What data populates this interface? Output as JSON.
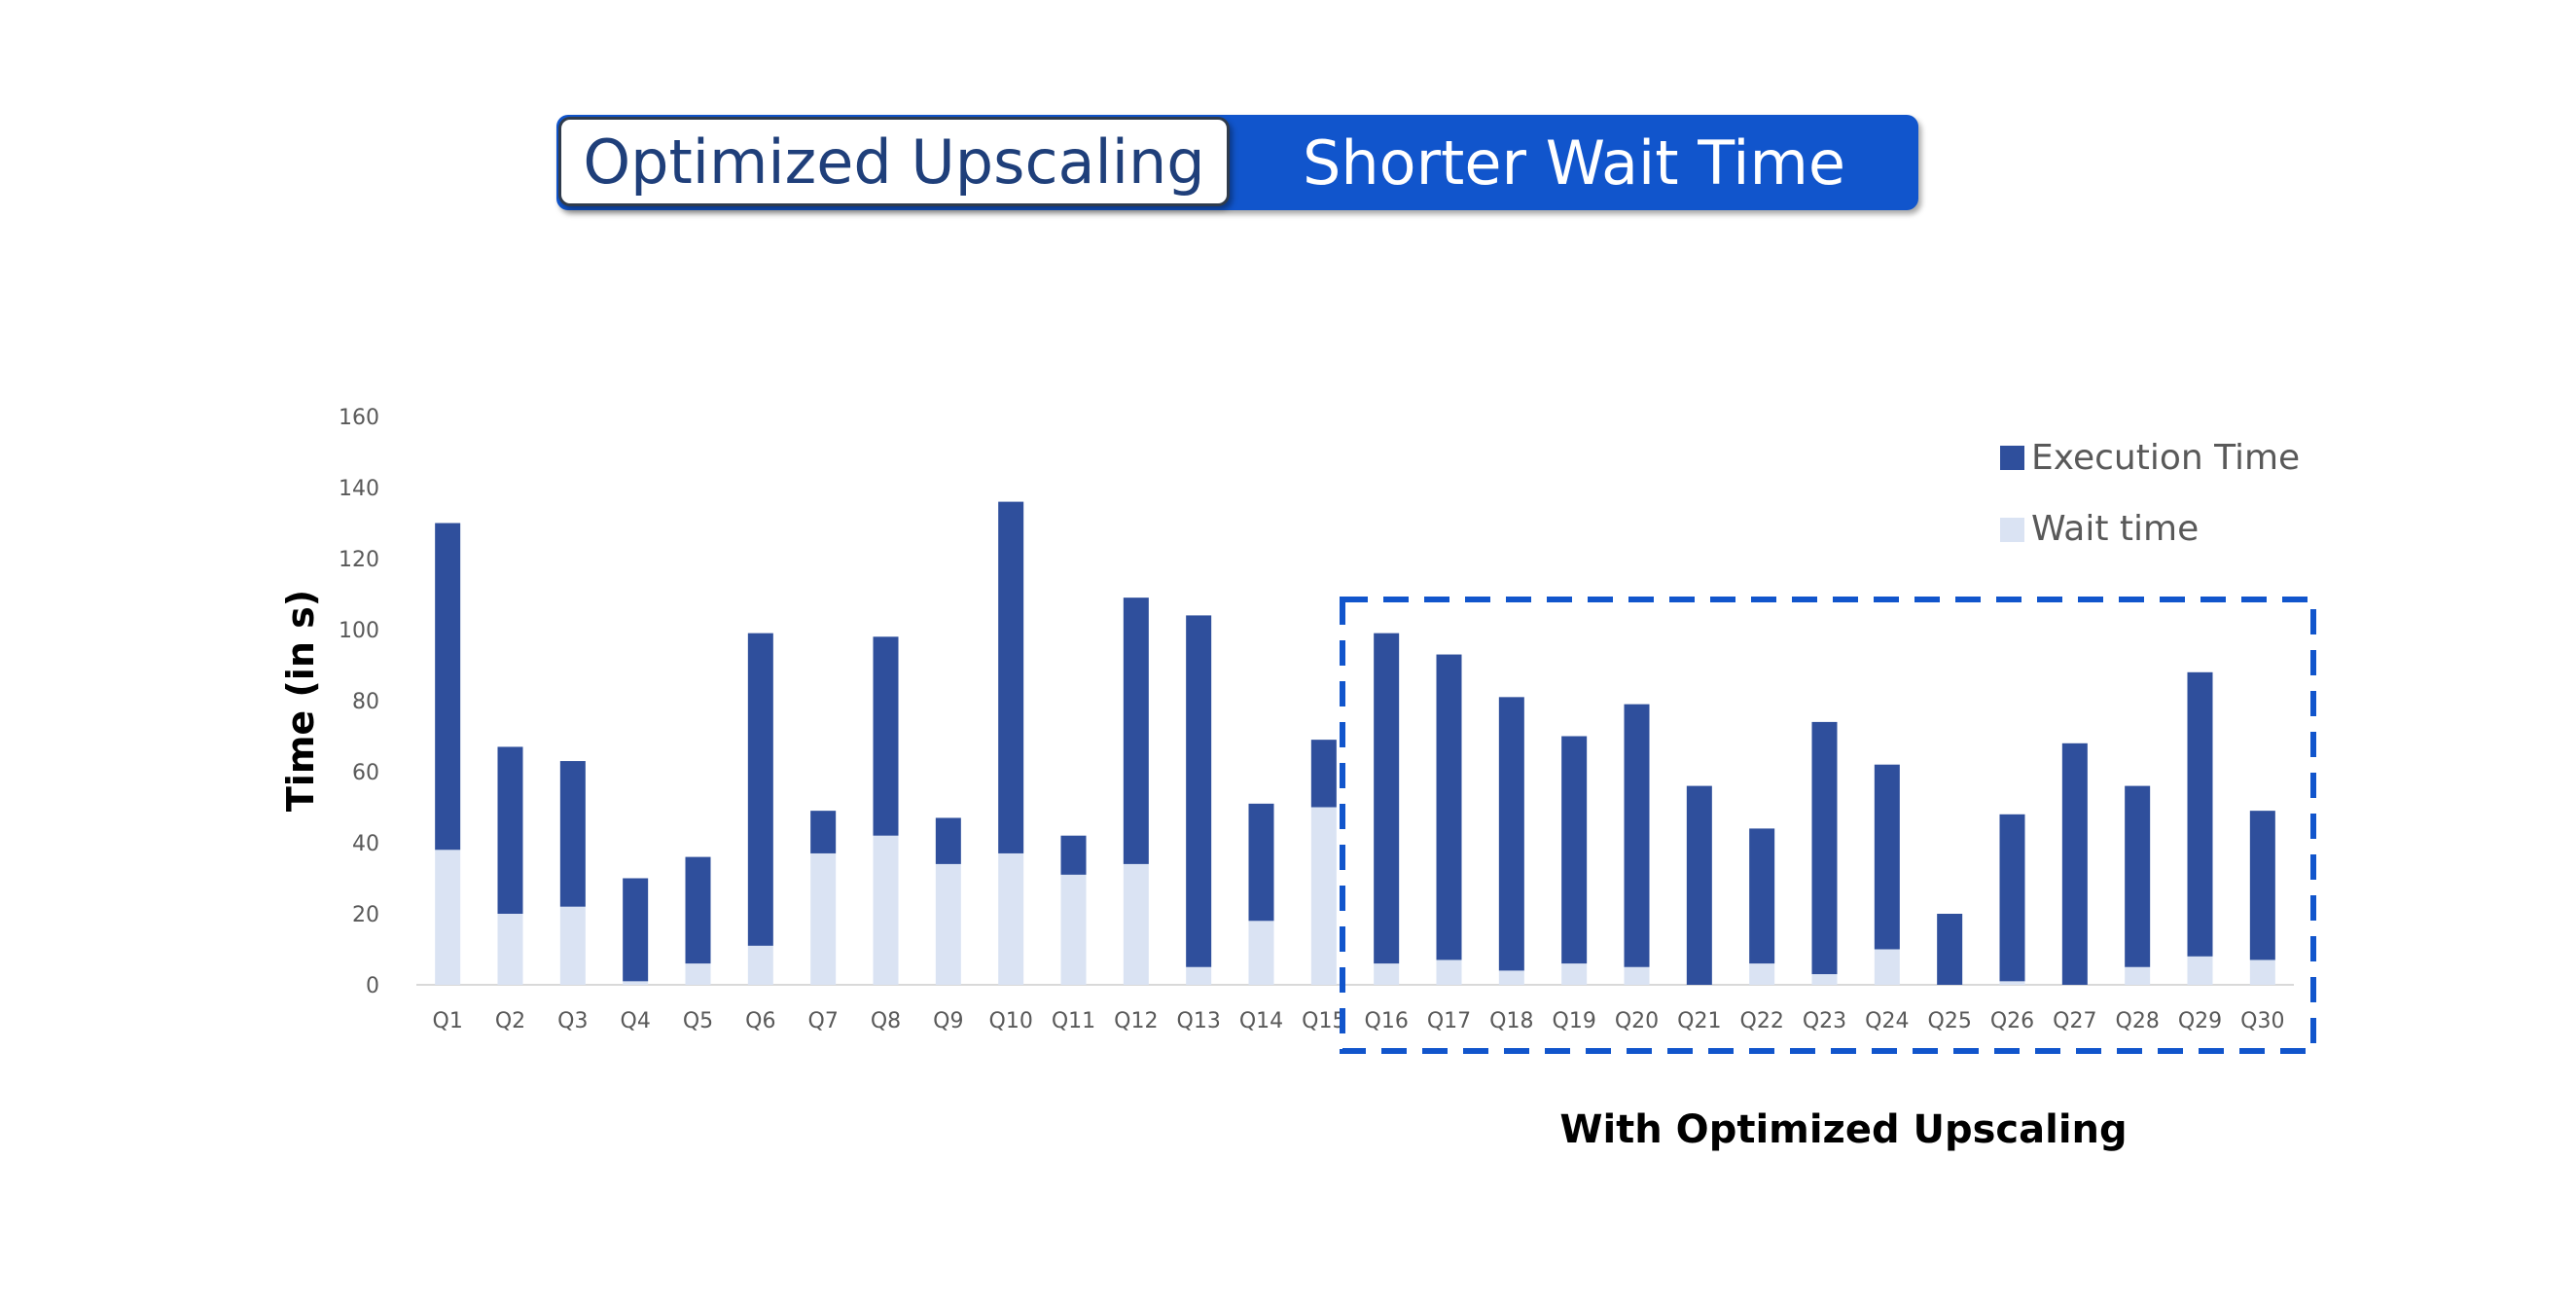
{
  "banner": {
    "left_label": "Optimized Upscaling",
    "right_label": "Shorter Wait Time"
  },
  "chart_data": {
    "type": "bar",
    "stacked": true,
    "ylabel": "Time (in s)",
    "xlabel": "",
    "ylim": [
      0,
      160
    ],
    "yticks": [
      0,
      20,
      40,
      60,
      80,
      100,
      120,
      140,
      160
    ],
    "categories": [
      "Q1",
      "Q2",
      "Q3",
      "Q4",
      "Q5",
      "Q6",
      "Q7",
      "Q8",
      "Q9",
      "Q10",
      "Q11",
      "Q12",
      "Q13",
      "Q14",
      "Q15",
      "Q16",
      "Q17",
      "Q18",
      "Q19",
      "Q20",
      "Q21",
      "Q22",
      "Q23",
      "Q24",
      "Q25",
      "Q26",
      "Q27",
      "Q28",
      "Q29",
      "Q30"
    ],
    "series": [
      {
        "name": "Wait time",
        "color": "#dae3f3",
        "values": [
          38,
          20,
          22,
          1,
          6,
          11,
          37,
          42,
          34,
          37,
          31,
          34,
          5,
          18,
          50,
          6,
          7,
          4,
          6,
          5,
          0,
          6,
          3,
          10,
          0,
          1,
          0,
          5,
          8,
          7
        ]
      },
      {
        "name": "Execution Time",
        "color": "#2f4f9c",
        "values": [
          92,
          47,
          41,
          29,
          30,
          88,
          12,
          56,
          13,
          99,
          11,
          75,
          99,
          33,
          19,
          93,
          86,
          77,
          64,
          74,
          56,
          38,
          71,
          52,
          20,
          47,
          68,
          51,
          80,
          42
        ]
      }
    ],
    "legend": {
      "position": "top-right",
      "entries": [
        "Execution Time",
        "Wait time"
      ]
    },
    "grid": false,
    "annotation": {
      "text": "With Optimized Upscaling",
      "range": [
        "Q16",
        "Q30"
      ],
      "style": "dashed-box",
      "color": "#1155cc"
    }
  }
}
